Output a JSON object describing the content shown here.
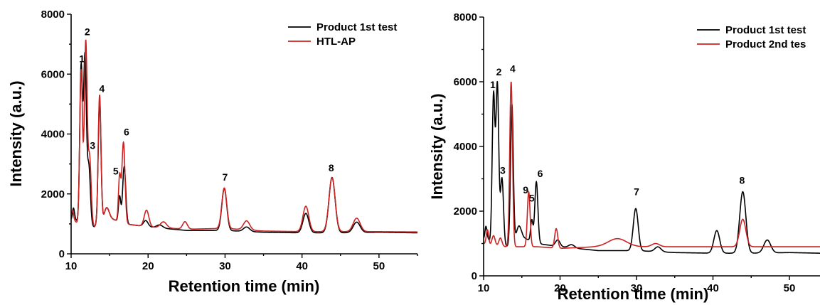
{
  "chart_data": [
    {
      "type": "line",
      "xlabel": "Retention time (min)",
      "ylabel": "Intensity (a.u.)",
      "xlim": [
        10,
        55
      ],
      "ylim": [
        0,
        8000
      ],
      "xticks": [
        10,
        20,
        30,
        40,
        50
      ],
      "yticks": [
        0,
        2000,
        4000,
        6000,
        8000
      ],
      "legend_position": "top-right",
      "series": [
        {
          "name": "Product 1st test",
          "color": "#000000",
          "baseline": [
            [
              10,
              1150
            ],
            [
              10.5,
              1200
            ],
            [
              11,
              950
            ],
            [
              13,
              900
            ],
            [
              15,
              1200
            ],
            [
              17,
              1000
            ],
            [
              20,
              900
            ],
            [
              25,
              780
            ],
            [
              30,
              780
            ],
            [
              35,
              720
            ],
            [
              40,
              700
            ],
            [
              45,
              700
            ],
            [
              50,
              720
            ],
            [
              55,
              700
            ]
          ],
          "peaks": [
            [
              10.3,
              350,
              0.12
            ],
            [
              11.3,
              5300,
              0.18
            ],
            [
              11.8,
              5600,
              0.18
            ],
            [
              12.3,
              2000,
              0.2
            ],
            [
              13.7,
              4100,
              0.18
            ],
            [
              14.6,
              400,
              0.3
            ],
            [
              16.3,
              850,
              0.15
            ],
            [
              16.9,
              1900,
              0.2
            ],
            [
              19.7,
              200,
              0.3
            ],
            [
              21.5,
              100,
              0.4
            ],
            [
              29.9,
              1400,
              0.32
            ],
            [
              32.8,
              150,
              0.4
            ],
            [
              40.5,
              650,
              0.38
            ],
            [
              43.9,
              1850,
              0.4
            ],
            [
              47.1,
              350,
              0.45
            ]
          ]
        },
        {
          "name": "HTL-AP",
          "color": "#cc2222",
          "baseline": [
            [
              10,
              1200
            ],
            [
              10.5,
              1100
            ],
            [
              11,
              950
            ],
            [
              13,
              900
            ],
            [
              15,
              1200
            ],
            [
              17,
              1000
            ],
            [
              20,
              900
            ],
            [
              25,
              820
            ],
            [
              30,
              850
            ],
            [
              35,
              760
            ],
            [
              40,
              740
            ],
            [
              45,
              740
            ],
            [
              50,
              740
            ],
            [
              55,
              730
            ]
          ],
          "peaks": [
            [
              10.2,
              300,
              0.12
            ],
            [
              11.3,
              5200,
              0.18
            ],
            [
              11.9,
              6100,
              0.18
            ],
            [
              12.4,
              2300,
              0.2
            ],
            [
              13.7,
              4300,
              0.18
            ],
            [
              14.6,
              400,
              0.3
            ],
            [
              16.3,
              1500,
              0.15
            ],
            [
              16.8,
              2700,
              0.2
            ],
            [
              19.8,
              550,
              0.3
            ],
            [
              22,
              200,
              0.4
            ],
            [
              24.8,
              250,
              0.3
            ],
            [
              29.9,
              1350,
              0.32
            ],
            [
              32.8,
              300,
              0.4
            ],
            [
              40.5,
              850,
              0.38
            ],
            [
              43.9,
              1800,
              0.4
            ],
            [
              47.1,
              450,
              0.45
            ]
          ]
        }
      ],
      "peak_labels": [
        {
          "text": "1",
          "x": 11.4,
          "y": 6400
        },
        {
          "text": "2",
          "x": 12.1,
          "y": 7300
        },
        {
          "text": "3",
          "x": 12.8,
          "y": 3500
        },
        {
          "text": "4",
          "x": 14.0,
          "y": 5400
        },
        {
          "text": "5",
          "x": 15.8,
          "y": 2650
        },
        {
          "text": "6",
          "x": 17.2,
          "y": 3950
        },
        {
          "text": "7",
          "x": 30.0,
          "y": 2450
        },
        {
          "text": "8",
          "x": 43.8,
          "y": 2750
        }
      ]
    },
    {
      "type": "line",
      "xlabel": "Retention time (min)",
      "ylabel": "Intensity (a.u.)",
      "xlim": [
        10,
        54
      ],
      "ylim": [
        0,
        8000
      ],
      "xticks": [
        10,
        20,
        30,
        40,
        50
      ],
      "yticks": [
        0,
        2000,
        4000,
        6000,
        8000
      ],
      "legend_position": "top-right",
      "series": [
        {
          "name": "Product 1st test",
          "color": "#000000",
          "baseline": [
            [
              10,
              1150
            ],
            [
              10.5,
              1200
            ],
            [
              11,
              950
            ],
            [
              13,
              900
            ],
            [
              15,
              1200
            ],
            [
              17,
              1000
            ],
            [
              20,
              900
            ],
            [
              25,
              780
            ],
            [
              30,
              780
            ],
            [
              35,
              720
            ],
            [
              40,
              700
            ],
            [
              45,
              700
            ],
            [
              50,
              720
            ],
            [
              54,
              700
            ]
          ],
          "peaks": [
            [
              10.3,
              350,
              0.12
            ],
            [
              11.3,
              4650,
              0.18
            ],
            [
              11.8,
              4950,
              0.18
            ],
            [
              12.4,
              2100,
              0.2
            ],
            [
              13.7,
              4300,
              0.18
            ],
            [
              14.6,
              400,
              0.3
            ],
            [
              16.3,
              650,
              0.15
            ],
            [
              16.9,
              1900,
              0.2
            ],
            [
              19.7,
              200,
              0.3
            ],
            [
              21.5,
              100,
              0.4
            ],
            [
              29.9,
              1300,
              0.32
            ],
            [
              32.8,
              150,
              0.4
            ],
            [
              40.5,
              700,
              0.38
            ],
            [
              43.9,
              1900,
              0.4
            ],
            [
              47.1,
              400,
              0.45
            ]
          ]
        },
        {
          "name": "Product 2nd tes",
          "color": "#cc2222",
          "baseline": [
            [
              10,
              1000
            ],
            [
              11,
              950
            ],
            [
              13,
              900
            ],
            [
              15,
              900
            ],
            [
              17,
              900
            ],
            [
              20,
              850
            ],
            [
              25,
              900
            ],
            [
              30,
              900
            ],
            [
              35,
              900
            ],
            [
              40,
              900
            ],
            [
              45,
              900
            ],
            [
              50,
              900
            ],
            [
              54,
              900
            ]
          ],
          "peaks": [
            [
              10.5,
              450,
              0.15
            ],
            [
              11.3,
              300,
              0.2
            ],
            [
              12.2,
              250,
              0.2
            ],
            [
              13.6,
              5100,
              0.18
            ],
            [
              15.9,
              1700,
              0.18
            ],
            [
              19.5,
              600,
              0.2
            ],
            [
              27.5,
              250,
              1.2
            ],
            [
              32.5,
              100,
              0.5
            ],
            [
              43.9,
              850,
              0.4
            ]
          ]
        }
      ],
      "peak_labels": [
        {
          "text": "1",
          "x": 11.2,
          "y": 5800
        },
        {
          "text": "2",
          "x": 12.0,
          "y": 6200
        },
        {
          "text": "3",
          "x": 12.5,
          "y": 3150
        },
        {
          "text": "4",
          "x": 13.8,
          "y": 6300
        },
        {
          "text": "9",
          "x": 15.5,
          "y": 2550
        },
        {
          "text": "5",
          "x": 16.3,
          "y": 2300
        },
        {
          "text": "6",
          "x": 17.4,
          "y": 3050
        },
        {
          "text": "7",
          "x": 30.0,
          "y": 2500
        },
        {
          "text": "8",
          "x": 43.8,
          "y": 2850
        }
      ]
    }
  ]
}
